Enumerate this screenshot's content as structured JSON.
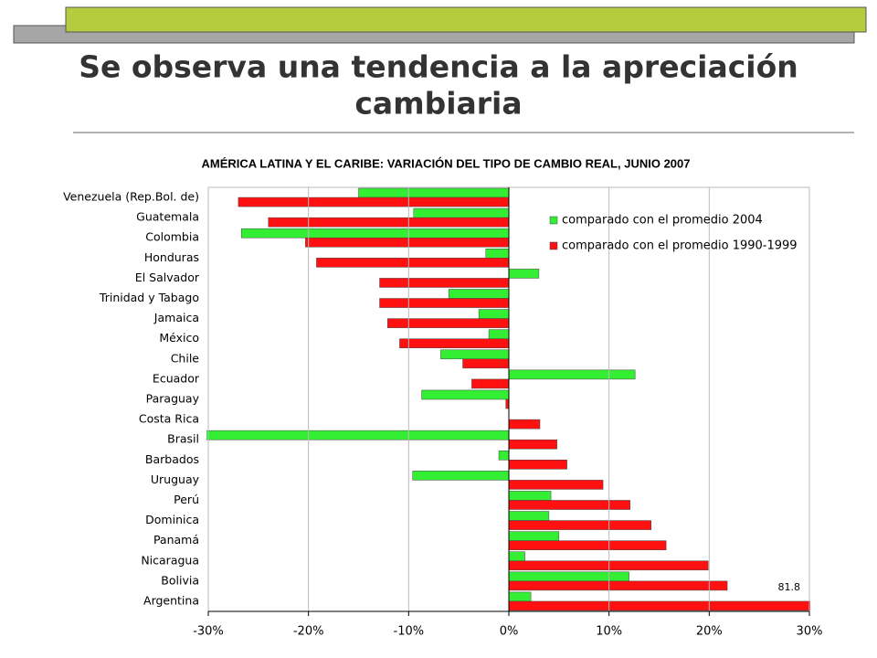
{
  "title": "Se observa una tendencia a la apreciación cambiaria",
  "chart_data": {
    "type": "hbar",
    "title": "AMÉRICA LATINA Y EL CARIBE: VARIACIÓN DEL TIPO DE CAMBIO REAL, JUNIO 2007",
    "categories": [
      "Venezuela (Rep.Bol. de)",
      "Guatemala",
      "Colombia",
      "Honduras",
      "El Salvador",
      "Trinidad y Tabago",
      "Jamaica",
      "México",
      "Chile",
      "Ecuador",
      "Paraguay",
      "Costa Rica",
      "Brasil",
      "Barbados",
      "Uruguay",
      "Perú",
      "Dominica",
      "Panamá",
      "Nicaragua",
      "Bolivia",
      "Argentina"
    ],
    "series": [
      {
        "name": "comparado con el promedio 2004",
        "color": "#33ee33",
        "values": [
          -15,
          -9.5,
          -26.7,
          -2.3,
          3,
          -6,
          -3,
          -2,
          -6.8,
          12.6,
          -8.7,
          0,
          -30.2,
          -1,
          -9.6,
          4.2,
          4,
          5,
          1.6,
          12,
          2.2
        ]
      },
      {
        "name": "comparado con el promedio 1990-1999",
        "color": "#ff1111",
        "values": [
          -27,
          -24,
          -20.3,
          -19.2,
          -12.9,
          -12.9,
          -12.1,
          -10.9,
          -4.6,
          -3.7,
          -0.3,
          3.1,
          4.8,
          5.8,
          9.4,
          12.1,
          14.2,
          15.7,
          19.9,
          21.8,
          81.8
        ],
        "value_labels": [
          null,
          null,
          null,
          null,
          null,
          null,
          null,
          null,
          null,
          null,
          null,
          null,
          null,
          null,
          null,
          null,
          null,
          null,
          null,
          null,
          "81.8"
        ]
      }
    ],
    "xlim": [
      -30,
      30
    ],
    "xticks": [
      {
        "value": -30,
        "label": "-30%"
      },
      {
        "value": -20,
        "label": "-20%"
      },
      {
        "value": -10,
        "label": "-10%"
      },
      {
        "value": 0,
        "label": "0%"
      },
      {
        "value": 10,
        "label": "10%"
      },
      {
        "value": 20,
        "label": "20%"
      },
      {
        "value": 30,
        "label": "30%"
      }
    ],
    "grid": true,
    "legend": "top-right"
  }
}
